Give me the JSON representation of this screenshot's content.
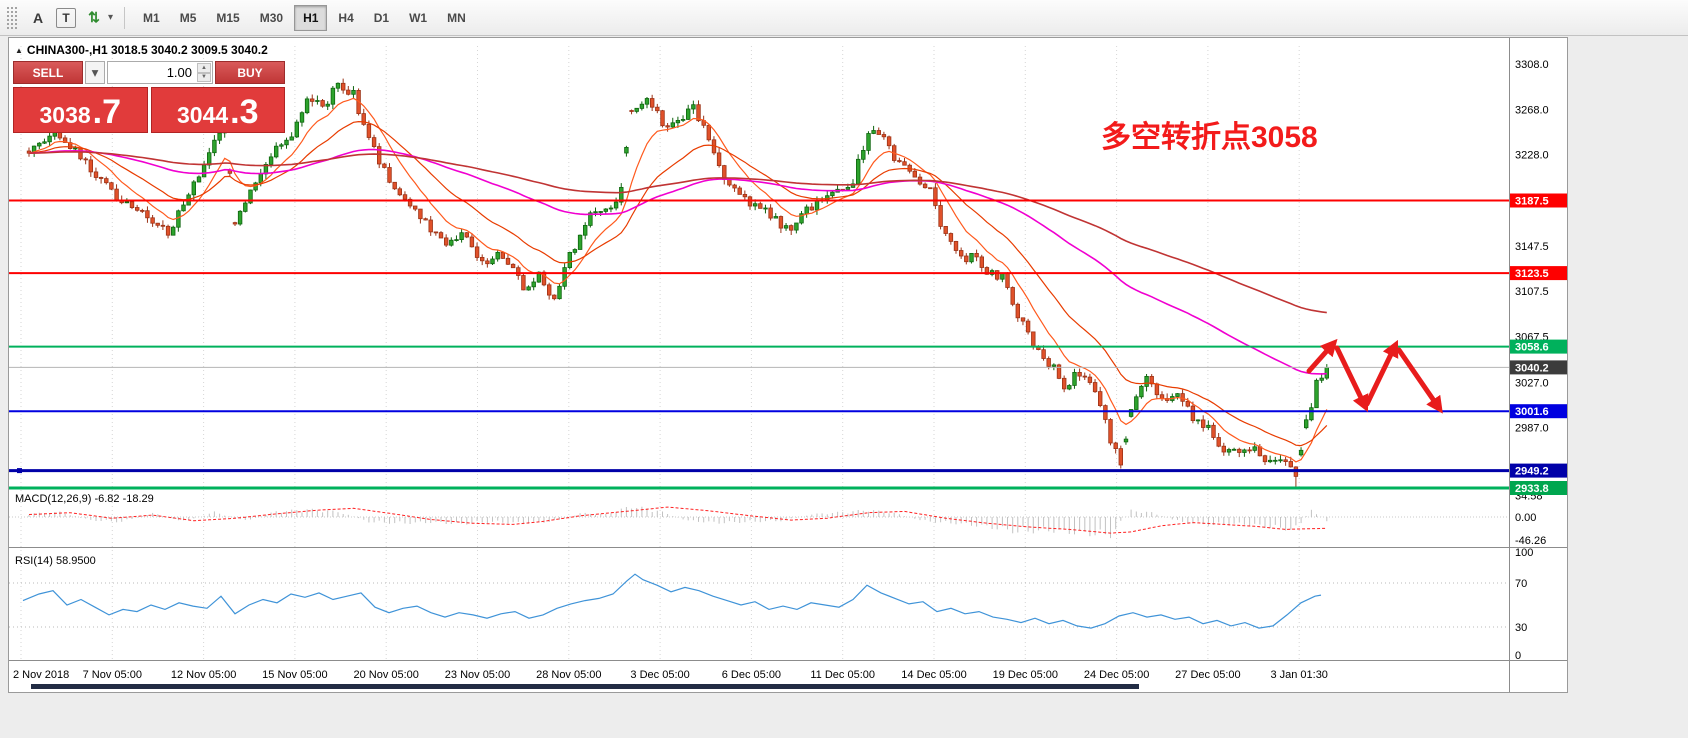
{
  "toolbar": {
    "tools": [
      {
        "name": "cursor-tool-icon",
        "glyph": "A"
      },
      {
        "name": "text-tool-icon",
        "glyph": "T",
        "boxed": true
      },
      {
        "name": "indicators-tool-icon",
        "glyph": "⇅",
        "color": "#2e8b2e",
        "caret": true
      }
    ],
    "timeframes": [
      {
        "label": "M1"
      },
      {
        "label": "M5"
      },
      {
        "label": "M15"
      },
      {
        "label": "M30"
      },
      {
        "label": "H1",
        "active": true
      },
      {
        "label": "H4"
      },
      {
        "label": "D1"
      },
      {
        "label": "W1"
      },
      {
        "label": "MN"
      }
    ]
  },
  "chart": {
    "title_text": "CHINA300-,H1  3018.5 3040.2 3009.5 3040.2",
    "annotation": "多空转折点3058"
  },
  "trade": {
    "sell_label": "SELL",
    "buy_label": "BUY",
    "volume": "1.00",
    "sell_price_main": "3038",
    "sell_price_frac": ".7",
    "buy_price_main": "3044",
    "buy_price_frac": ".3"
  },
  "chart_data": {
    "type": "candlestick",
    "symbol": "CHINA300-",
    "timeframe": "H1",
    "ohlc": {
      "o": 3018.5,
      "h": 3040.2,
      "l": 3009.5,
      "c": 3040.2
    },
    "candle_count": 253,
    "candle_colors": {
      "up": "#2da32d",
      "up_border": "#0e650e",
      "down": "#e0512a",
      "down_border": "#9c3317"
    },
    "y_ticks": [
      "3308.0",
      "3268.0",
      "3228.0",
      "3147.5",
      "3107.5",
      "3067.5",
      "3027.0",
      "2987.0"
    ],
    "levels": [
      {
        "price": 3187.5,
        "label": "3187.5",
        "color": "#fe0000",
        "badge": "#fe0000",
        "width": 2
      },
      {
        "price": 3123.5,
        "label": "3123.5",
        "color": "#fe0000",
        "badge": "#fe0000",
        "width": 2
      },
      {
        "price": 3058.6,
        "label": "3058.6",
        "color": "#00b15c",
        "badge": "#00b15c",
        "width": 2
      },
      {
        "price": 3001.6,
        "label": "3001.6",
        "color": "#0000e0",
        "badge": "#0000e0",
        "width": 2
      },
      {
        "price": 2949.2,
        "label": "2949.2",
        "color": "#0000a8",
        "badge": "#0000a8",
        "width": 3,
        "handle": true
      },
      {
        "price": 2933.8,
        "label": "2933.8",
        "color": "#00b15c",
        "badge": "#00a64f",
        "width": 3
      }
    ],
    "current_price": {
      "value": 3040.2,
      "label": "3040.2",
      "line_color": "#b4b4b4",
      "badge": "#3c3c3c"
    },
    "x_labels": [
      "2 Nov 2018",
      "7 Nov 05:00",
      "12 Nov 05:00",
      "15 Nov 05:00",
      "20 Nov 05:00",
      "23 Nov 05:00",
      "28 Nov 05:00",
      "3 Dec 05:00",
      "6 Dec 05:00",
      "11 Dec 05:00",
      "14 Dec 05:00",
      "19 Dec 05:00",
      "24 Dec 05:00",
      "27 Dec 05:00",
      "3 Jan 01:30"
    ],
    "price_path": [
      [
        0,
        3230
      ],
      [
        5,
        3252
      ],
      [
        10,
        3225
      ],
      [
        16,
        3195
      ],
      [
        23,
        3175
      ],
      [
        27,
        3160
      ],
      [
        32,
        3200
      ],
      [
        36,
        3240
      ],
      [
        38,
        3258
      ],
      [
        40,
        3165
      ],
      [
        43,
        3200
      ],
      [
        48,
        3235
      ],
      [
        51,
        3240
      ],
      [
        54,
        3280
      ],
      [
        57,
        3268
      ],
      [
        60,
        3290
      ],
      [
        63,
        3282
      ],
      [
        66,
        3240
      ],
      [
        71,
        3200
      ],
      [
        76,
        3175
      ],
      [
        81,
        3145
      ],
      [
        84,
        3160
      ],
      [
        88,
        3130
      ],
      [
        92,
        3140
      ],
      [
        96,
        3110
      ],
      [
        99,
        3125
      ],
      [
        102,
        3100
      ],
      [
        105,
        3140
      ],
      [
        109,
        3175
      ],
      [
        113,
        3185
      ],
      [
        115,
        3195
      ],
      [
        117,
        3270
      ],
      [
        120,
        3280
      ],
      [
        123,
        3255
      ],
      [
        126,
        3260
      ],
      [
        129,
        3270
      ],
      [
        132,
        3245
      ],
      [
        134,
        3215
      ],
      [
        137,
        3195
      ],
      [
        140,
        3185
      ],
      [
        144,
        3175
      ],
      [
        148,
        3160
      ],
      [
        151,
        3180
      ],
      [
        154,
        3190
      ],
      [
        157,
        3195
      ],
      [
        160,
        3205
      ],
      [
        163,
        3250
      ],
      [
        166,
        3240
      ],
      [
        169,
        3220
      ],
      [
        172,
        3205
      ],
      [
        175,
        3195
      ],
      [
        178,
        3155
      ],
      [
        181,
        3135
      ],
      [
        183,
        3140
      ],
      [
        186,
        3125
      ],
      [
        189,
        3120
      ],
      [
        192,
        3085
      ],
      [
        195,
        3060
      ],
      [
        198,
        3045
      ],
      [
        201,
        3025
      ],
      [
        204,
        3035
      ],
      [
        207,
        3020
      ],
      [
        210,
        2975
      ],
      [
        212,
        2955
      ],
      [
        214,
        3000
      ],
      [
        217,
        3030
      ],
      [
        220,
        3010
      ],
      [
        223,
        3015
      ],
      [
        226,
        2995
      ],
      [
        229,
        2985
      ],
      [
        232,
        2970
      ],
      [
        235,
        2965
      ],
      [
        238,
        2970
      ],
      [
        241,
        2955
      ],
      [
        244,
        2960
      ],
      [
        246,
        2942
      ],
      [
        248,
        2990
      ],
      [
        250,
        3028
      ],
      [
        252,
        3040.2
      ]
    ],
    "moving_averages": [
      {
        "period": 9,
        "color": "#ff5a1e",
        "width": 1.2
      },
      {
        "period": 23,
        "color": "#e83c00",
        "width": 1.2
      },
      {
        "period": 80,
        "color": "#f000d0",
        "width": 1.6
      },
      {
        "period": 160,
        "color": "#c03434",
        "width": 1.6
      }
    ],
    "macd": {
      "label_full": "MACD(12,26,9) -6.82 -18.29",
      "main_value": -6.82,
      "signal_value": -18.29,
      "scale": [
        "34.58",
        "0.00",
        "-46.26"
      ],
      "signal_path": [
        [
          0,
          4
        ],
        [
          8,
          7
        ],
        [
          16,
          -2
        ],
        [
          24,
          3
        ],
        [
          32,
          -6
        ],
        [
          40,
          -2
        ],
        [
          48,
          5
        ],
        [
          56,
          11
        ],
        [
          63,
          14
        ],
        [
          70,
          6
        ],
        [
          78,
          -4
        ],
        [
          86,
          -10
        ],
        [
          94,
          -12
        ],
        [
          100,
          -7
        ],
        [
          107,
          2
        ],
        [
          112,
          6
        ],
        [
          117,
          10
        ],
        [
          124,
          16
        ],
        [
          132,
          10
        ],
        [
          140,
          2
        ],
        [
          148,
          -5
        ],
        [
          155,
          -2
        ],
        [
          163,
          7
        ],
        [
          170,
          9
        ],
        [
          178,
          -2
        ],
        [
          186,
          -10
        ],
        [
          194,
          -16
        ],
        [
          202,
          -20
        ],
        [
          210,
          -26
        ],
        [
          214,
          -24
        ],
        [
          220,
          -14
        ],
        [
          226,
          -9
        ],
        [
          232,
          -12
        ],
        [
          238,
          -15
        ],
        [
          244,
          -20
        ],
        [
          248,
          -19
        ],
        [
          252,
          -18.29
        ]
      ],
      "hist_path": [
        [
          0,
          6
        ],
        [
          6,
          9
        ],
        [
          12,
          -6
        ],
        [
          18,
          -9
        ],
        [
          24,
          7
        ],
        [
          30,
          -8
        ],
        [
          36,
          9
        ],
        [
          42,
          -7
        ],
        [
          48,
          10
        ],
        [
          54,
          14
        ],
        [
          60,
          10
        ],
        [
          66,
          -9
        ],
        [
          72,
          -12
        ],
        [
          78,
          -10
        ],
        [
          84,
          -13
        ],
        [
          90,
          -9
        ],
        [
          96,
          -12
        ],
        [
          102,
          -8
        ],
        [
          107,
          7
        ],
        [
          112,
          5
        ],
        [
          117,
          20
        ],
        [
          122,
          12
        ],
        [
          128,
          -7
        ],
        [
          134,
          -11
        ],
        [
          140,
          -9
        ],
        [
          146,
          -7
        ],
        [
          152,
          5
        ],
        [
          158,
          9
        ],
        [
          163,
          13
        ],
        [
          168,
          7
        ],
        [
          174,
          -8
        ],
        [
          180,
          -12
        ],
        [
          186,
          -18
        ],
        [
          192,
          -28
        ],
        [
          198,
          -25
        ],
        [
          204,
          -30
        ],
        [
          210,
          -34
        ],
        [
          214,
          12
        ],
        [
          218,
          8
        ],
        [
          224,
          -10
        ],
        [
          230,
          -15
        ],
        [
          236,
          -13
        ],
        [
          242,
          -20
        ],
        [
          246,
          -24
        ],
        [
          249,
          14
        ],
        [
          252,
          -6.82
        ]
      ]
    },
    "rsi": {
      "label_full": "RSI(14) 58.9500",
      "value": 58.95,
      "color": "#3f93d8",
      "scale": [
        "100",
        "70",
        "30",
        "0"
      ],
      "line_path": [
        [
          14,
          54
        ],
        [
          30,
          60
        ],
        [
          44,
          63
        ],
        [
          58,
          50
        ],
        [
          72,
          55
        ],
        [
          86,
          48
        ],
        [
          100,
          41
        ],
        [
          114,
          46
        ],
        [
          128,
          44
        ],
        [
          142,
          50
        ],
        [
          156,
          46
        ],
        [
          170,
          52
        ],
        [
          184,
          49
        ],
        [
          198,
          47
        ],
        [
          212,
          58
        ],
        [
          226,
          42
        ],
        [
          240,
          50
        ],
        [
          254,
          55
        ],
        [
          268,
          52
        ],
        [
          282,
          60
        ],
        [
          296,
          57
        ],
        [
          310,
          61
        ],
        [
          324,
          55
        ],
        [
          338,
          58
        ],
        [
          352,
          61
        ],
        [
          366,
          48
        ],
        [
          380,
          43
        ],
        [
          394,
          47
        ],
        [
          408,
          49
        ],
        [
          422,
          43
        ],
        [
          436,
          39
        ],
        [
          450,
          43
        ],
        [
          464,
          41
        ],
        [
          478,
          38
        ],
        [
          492,
          42
        ],
        [
          506,
          44
        ],
        [
          520,
          38
        ],
        [
          534,
          41
        ],
        [
          548,
          47
        ],
        [
          562,
          51
        ],
        [
          576,
          54
        ],
        [
          590,
          56
        ],
        [
          604,
          60
        ],
        [
          618,
          72
        ],
        [
          626,
          78
        ],
        [
          634,
          73
        ],
        [
          648,
          68
        ],
        [
          662,
          62
        ],
        [
          676,
          66
        ],
        [
          690,
          63
        ],
        [
          704,
          58
        ],
        [
          718,
          54
        ],
        [
          732,
          50
        ],
        [
          746,
          53
        ],
        [
          760,
          46
        ],
        [
          774,
          49
        ],
        [
          788,
          46
        ],
        [
          802,
          52
        ],
        [
          816,
          50
        ],
        [
          830,
          48
        ],
        [
          844,
          55
        ],
        [
          858,
          68
        ],
        [
          872,
          61
        ],
        [
          886,
          56
        ],
        [
          900,
          51
        ],
        [
          914,
          53
        ],
        [
          928,
          44
        ],
        [
          942,
          47
        ],
        [
          956,
          42
        ],
        [
          970,
          44
        ],
        [
          984,
          39
        ],
        [
          998,
          37
        ],
        [
          1012,
          34
        ],
        [
          1026,
          38
        ],
        [
          1040,
          33
        ],
        [
          1054,
          36
        ],
        [
          1068,
          31
        ],
        [
          1082,
          29
        ],
        [
          1096,
          33
        ],
        [
          1110,
          40
        ],
        [
          1124,
          43
        ],
        [
          1138,
          39
        ],
        [
          1152,
          41
        ],
        [
          1166,
          37
        ],
        [
          1180,
          39
        ],
        [
          1194,
          33
        ],
        [
          1208,
          36
        ],
        [
          1222,
          31
        ],
        [
          1236,
          34
        ],
        [
          1250,
          29
        ],
        [
          1264,
          31
        ],
        [
          1278,
          41
        ],
        [
          1292,
          52
        ],
        [
          1306,
          58
        ],
        [
          1312,
          59
        ]
      ]
    },
    "annotation_color": "#e81c1c",
    "annotation_arrows": [
      [
        1300,
        333,
        1324,
        306
      ],
      [
        1328,
        310,
        1356,
        368
      ],
      [
        1358,
        366,
        1386,
        308
      ],
      [
        1390,
        312,
        1430,
        370
      ]
    ]
  }
}
